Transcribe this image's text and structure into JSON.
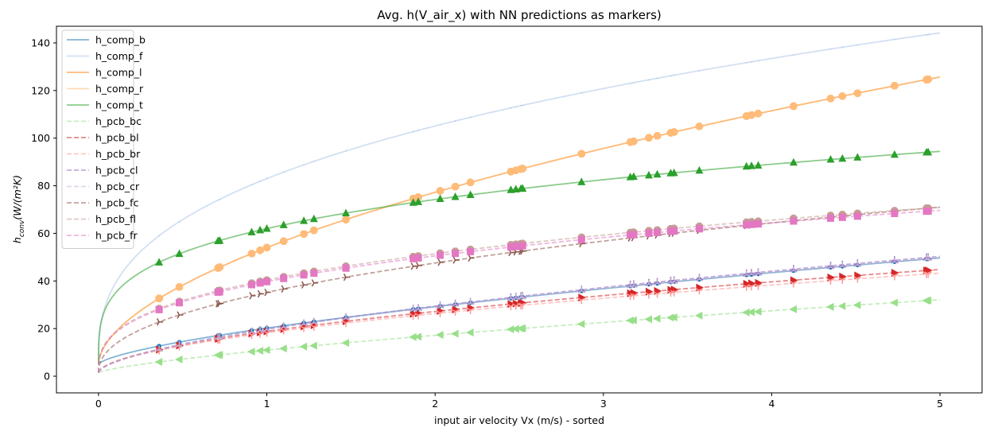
{
  "chart_data": {
    "type": "line",
    "title": "Avg. h(V_air_x) with NN predictions as markers)",
    "xlabel": "input air velocity Vx (m/s) - sorted",
    "ylabel_main": "h",
    "ylabel_sub": "conv",
    "ylabel_unit": "(W/(m²K)",
    "xlim": [
      -0.25,
      5.25
    ],
    "ylim": [
      -7,
      147
    ],
    "xticks": [
      0,
      1,
      2,
      3,
      4,
      5
    ],
    "yticks": [
      0,
      20,
      40,
      60,
      80,
      100,
      120,
      140
    ],
    "grid": false,
    "legend_position": "top-left",
    "marker_x": [
      0.36,
      0.48,
      0.71,
      0.72,
      0.91,
      0.96,
      1.0,
      1.1,
      1.22,
      1.28,
      1.47,
      1.87,
      1.9,
      2.03,
      2.12,
      2.21,
      2.45,
      2.48,
      2.51,
      2.52,
      2.87,
      3.16,
      3.18,
      3.27,
      3.32,
      3.4,
      3.42,
      3.57,
      3.85,
      3.88,
      3.92,
      4.13,
      4.35,
      4.42,
      4.51,
      4.73,
      4.92,
      4.93
    ],
    "series": [
      {
        "name": "h_comp_b",
        "color": "#1f77b4",
        "dash": "solid",
        "marker": "dot",
        "a": 5.0,
        "b": 15.2,
        "p": 0.67
      },
      {
        "name": "h_comp_f",
        "color": "#aec7e8",
        "dash": "solid",
        "marker": "tiny",
        "a": 5.0,
        "b": 78.0,
        "p": 0.36
      },
      {
        "name": "h_comp_l",
        "color": "#ff7f0e",
        "dash": "solid",
        "marker": "octagon",
        "a": 5.0,
        "b": 49.0,
        "p": 0.56
      },
      {
        "name": "h_comp_r",
        "color": "#ffbb78",
        "dash": "solid",
        "marker": "octagon",
        "a": 5.0,
        "b": 49.0,
        "p": 0.56
      },
      {
        "name": "h_comp_t",
        "color": "#2ca02c",
        "dash": "solid",
        "marker": "triangle-up",
        "a": 5.0,
        "b": 57.0,
        "p": 0.28
      },
      {
        "name": "h_pcb_bc",
        "color": "#98df8a",
        "dash": "dashed",
        "marker": "triangle-left",
        "a": 1.5,
        "b": 9.45,
        "p": 0.73
      },
      {
        "name": "h_pcb_bl",
        "color": "#d62728",
        "dash": "dashed",
        "marker": "triangle-right",
        "a": 1.5,
        "b": 17.3,
        "p": 0.57
      },
      {
        "name": "h_pcb_br",
        "color": "#ff9896",
        "dash": "dashed",
        "marker": "tri-down",
        "a": 1.5,
        "b": 16.7,
        "p": 0.57
      },
      {
        "name": "h_pcb_cl",
        "color": "#9467bd",
        "dash": "dashed",
        "marker": "tri-up",
        "a": 1.5,
        "b": 18.3,
        "p": 0.61
      },
      {
        "name": "h_pcb_cr",
        "color": "#c5b0d5",
        "dash": "dashed",
        "marker": "tri-up",
        "a": 1.5,
        "b": 18.1,
        "p": 0.61
      },
      {
        "name": "h_pcb_fc",
        "color": "#8c564b",
        "dash": "dashed",
        "marker": "tri-right",
        "a": 1.5,
        "b": 33.7,
        "p": 0.45
      },
      {
        "name": "h_pcb_fl",
        "color": "#c49c94",
        "dash": "dashed",
        "marker": "octagon",
        "a": 1.5,
        "b": 38.9,
        "p": 0.36
      },
      {
        "name": "h_pcb_fr",
        "color": "#e377c2",
        "dash": "dashed",
        "marker": "square",
        "a": 1.5,
        "b": 38.2,
        "p": 0.36
      }
    ]
  }
}
